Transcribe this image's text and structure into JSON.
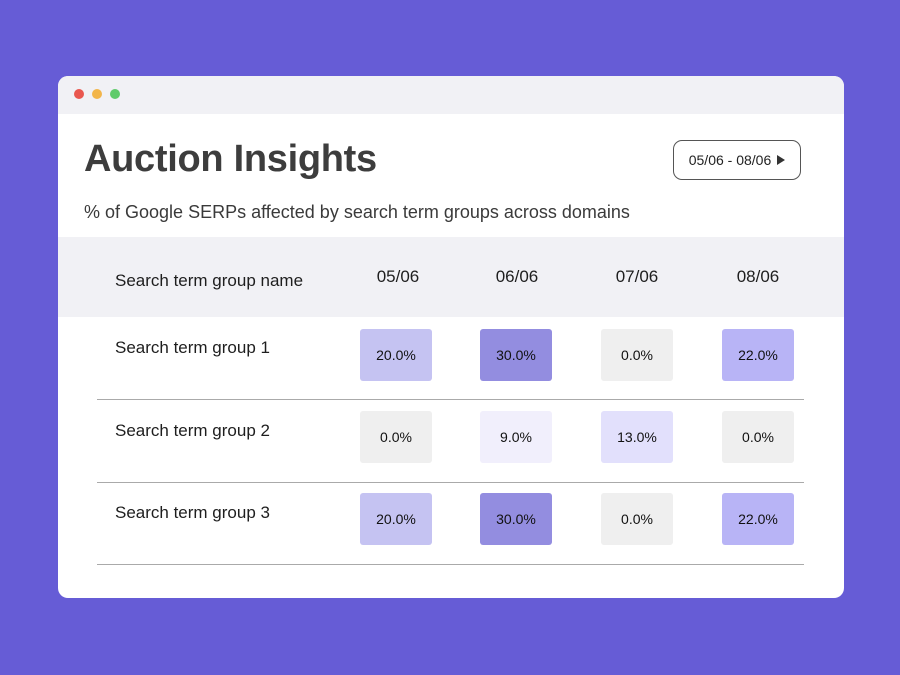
{
  "window": {
    "controls": {
      "close": "#e9574f",
      "minimize": "#f2b54a",
      "maximize": "#5fcb6a"
    }
  },
  "header": {
    "title": "Auction Insights",
    "subtitle": "% of Google SERPs affected by search term groups across domains",
    "date_range": "05/06 - 08/06",
    "date_range_icon": "play-icon"
  },
  "table": {
    "columns": [
      "Search term group name",
      "05/06",
      "06/06",
      "07/06",
      "08/06"
    ],
    "rows": [
      {
        "name": "Search term group 1",
        "cells": [
          {
            "value": "20.0%",
            "color": "#c5c3f2"
          },
          {
            "value": "30.0%",
            "color": "#938de0"
          },
          {
            "value": "0.0%",
            "color": "#efefef"
          },
          {
            "value": "22.0%",
            "color": "#b8b4f6"
          }
        ]
      },
      {
        "name": "Search term group 2",
        "cells": [
          {
            "value": "0.0%",
            "color": "#efefef"
          },
          {
            "value": "9.0%",
            "color": "#f1effc"
          },
          {
            "value": "13.0%",
            "color": "#e2e0fc"
          },
          {
            "value": "0.0%",
            "color": "#efefef"
          }
        ]
      },
      {
        "name": "Search term group 3",
        "cells": [
          {
            "value": "20.0%",
            "color": "#c5c3f2"
          },
          {
            "value": "30.0%",
            "color": "#938de0"
          },
          {
            "value": "0.0%",
            "color": "#efefef"
          },
          {
            "value": "22.0%",
            "color": "#b8b4f6"
          }
        ]
      }
    ]
  },
  "colors": {
    "background": "#665cd6",
    "header_band": "#f1f1f5"
  }
}
